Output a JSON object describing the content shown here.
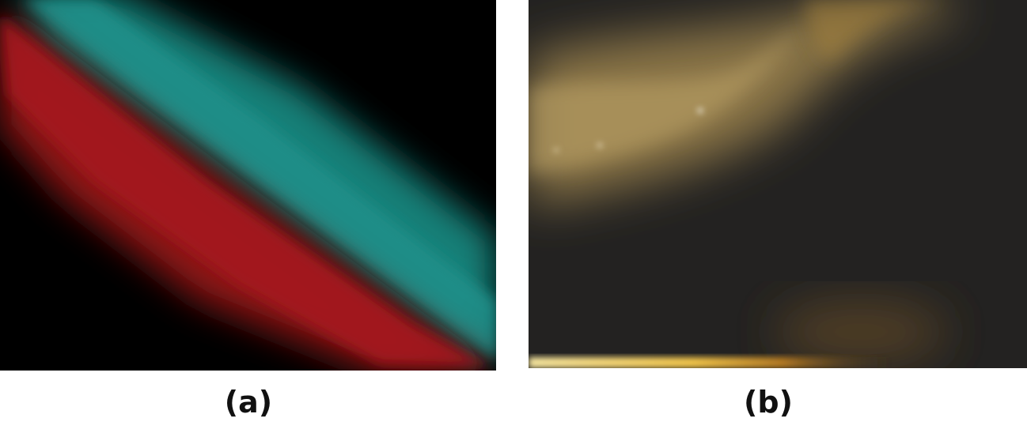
{
  "figure": {
    "panels": [
      {
        "id": "a",
        "caption": "(a)",
        "description_colors": {
          "background": "#000000",
          "upper_band": "#1a8a84",
          "lower_band": "#a11a1c"
        }
      },
      {
        "id": "b",
        "caption": "(b)",
        "description_colors": {
          "background": "#232221",
          "glow": "#b99a5a",
          "highlight": "#f0c040"
        }
      }
    ]
  }
}
